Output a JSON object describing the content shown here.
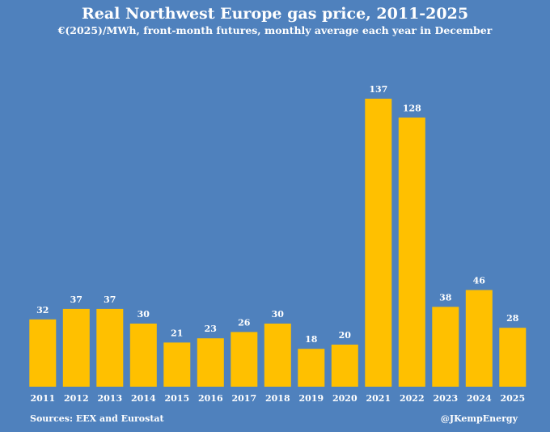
{
  "chart_data": {
    "type": "bar",
    "title": "Real Northwest Europe gas price, 2011-2025",
    "subtitle": "€(2025)/MWh, front-month futures, monthly average each year in December",
    "categories": [
      "2011",
      "2012",
      "2013",
      "2014",
      "2015",
      "2016",
      "2017",
      "2018",
      "2019",
      "2020",
      "2021",
      "2022",
      "2023",
      "2024",
      "2025"
    ],
    "values": [
      32,
      37,
      37,
      30,
      21,
      23,
      26,
      30,
      18,
      20,
      137,
      128,
      38,
      46,
      28
    ],
    "xlabel": "",
    "ylabel": "",
    "ylim": [
      0,
      137
    ],
    "grid": false,
    "bar_color": "#ffc000",
    "background_color": "#4f81bd"
  },
  "footer": {
    "source": "Sources: EEX and Eurostat",
    "credit": "@JKempEnergy"
  }
}
